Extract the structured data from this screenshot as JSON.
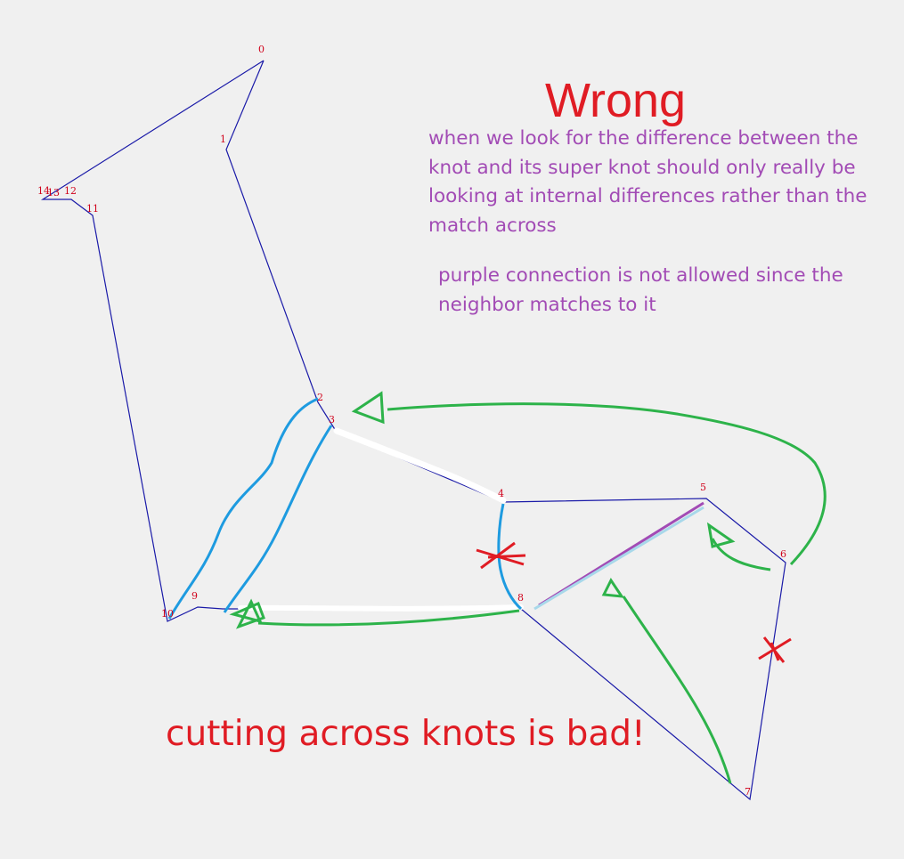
{
  "title": "Wrong",
  "note_lines": [
    "when we look for the difference between the",
    "knot and its super knot should only really be",
    "looking at internal differences rather than the",
    "match across"
  ],
  "purple_note_lines": [
    "purple connection is not allowed since the",
    "neighbor matches to it"
  ],
  "bottom_text": "cutting across knots is bad!",
  "vertex_labels": [
    "0",
    "1",
    "11",
    "12",
    "13",
    "14",
    "2",
    "3",
    "4",
    "5",
    "6",
    "7",
    "8",
    "9",
    "10"
  ],
  "colors": {
    "background": "#f0f0f0",
    "polygon": "#1a1aa8",
    "red": "#e01c24",
    "purple": "#a24bb5",
    "green": "#2db34a",
    "blue": "#1e9be0",
    "light_blue": "#a8d8ea",
    "white": "#ffffff"
  }
}
